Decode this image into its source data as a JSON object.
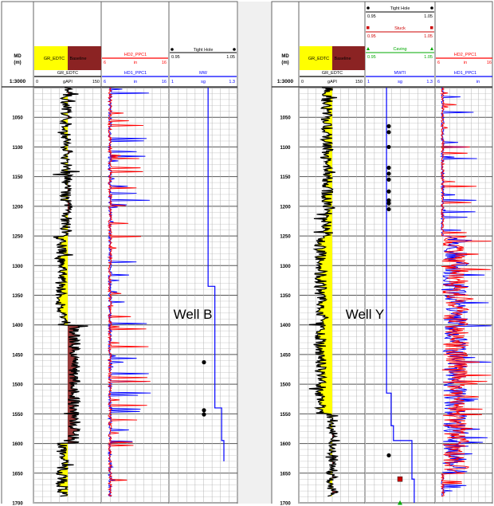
{
  "colors": {
    "gamma_black": "#000000",
    "fill_yellow": "#ffff00",
    "fill_brown": "#8b2323",
    "resist_red": "#ff0000",
    "resist_blue": "#0000ff",
    "mud_blue": "#0000ff",
    "caving_green": "#00aa00",
    "stuck_red": "#cc0000",
    "grid": "#808080"
  },
  "wells": [
    {
      "name": "Well B",
      "depth_header": {
        "line1": "MD",
        "line2": "(m)",
        "scale": "1:3000"
      },
      "gr_track": {
        "legend_yellow": "GR_EDTC",
        "legend_brown": "Baseline",
        "curve": "GR_EDTC",
        "min": "0",
        "unit": "gAPI",
        "max": "150"
      },
      "res_track": {
        "curve_top": "HD2_PPC1",
        "min_top": "6",
        "unit_top": "in",
        "max_top": "16",
        "curve_bot": "HD1_PPC1",
        "min_bot": "6",
        "unit_bot": "in",
        "max_bot": "16"
      },
      "mw_track": {
        "marker_label": "Tight Hole",
        "min": "0.95",
        "max": "1.05",
        "curve": "MW",
        "unit_min": "1",
        "unit": "sg",
        "unit_max": "1.3"
      },
      "depth_labels": [
        "1050",
        "1100",
        "1150",
        "1200",
        "1250",
        "1300",
        "1350",
        "1400",
        "1450",
        "1500",
        "1550",
        "1600",
        "1650",
        "1700"
      ],
      "mw_steps": [
        {
          "depth": 1000,
          "value": 1.17
        },
        {
          "depth": 1335,
          "value": 1.17
        },
        {
          "depth": 1335,
          "value": 1.2
        },
        {
          "depth": 1540,
          "value": 1.2
        },
        {
          "depth": 1540,
          "value": 1.23
        },
        {
          "depth": 1595,
          "value": 1.23
        },
        {
          "depth": 1595,
          "value": 1.24
        },
        {
          "depth": 1630,
          "value": 1.24
        }
      ],
      "tight_hole_depths": [
        1463,
        1544,
        1551
      ]
    },
    {
      "name": "Well Y",
      "depth_header": {
        "line1": "MD",
        "line2": "(m)",
        "scale": "1:3000"
      },
      "gr_track": {
        "legend_yellow": "GR_EDTC",
        "legend_brown": "Baseline",
        "curve": "GR_EDTC",
        "min": "0",
        "unit": "gAPI",
        "max": "150"
      },
      "event_track": {
        "tight": {
          "label": "Tight Hole",
          "min": "0.95",
          "max": "1.05"
        },
        "stuck": {
          "label": "Stuck",
          "min": "0.95",
          "max": "1.05"
        },
        "caving": {
          "label": "Caving",
          "min": "0.95",
          "max": "1.05"
        },
        "mw": {
          "curve": "MWTI",
          "min": "1",
          "unit": "sg",
          "max": "1.3"
        }
      },
      "res_track": {
        "curve_top": "HD2_PPC1",
        "min_top": "6",
        "unit_top": "in",
        "max_top": "16",
        "curve_bot": "HD1_PPC1",
        "min_bot": "6",
        "unit_bot": "in"
      },
      "depth_labels": [
        "1050",
        "1100",
        "1150",
        "1200",
        "1250",
        "1300",
        "1350",
        "1400",
        "1450",
        "1500",
        "1550",
        "1600",
        "1650",
        "1700"
      ],
      "mw_steps": [
        {
          "depth": 1000,
          "value": 1.09
        },
        {
          "depth": 1515,
          "value": 1.09
        },
        {
          "depth": 1515,
          "value": 1.11
        },
        {
          "depth": 1570,
          "value": 1.11
        },
        {
          "depth": 1570,
          "value": 1.12
        },
        {
          "depth": 1595,
          "value": 1.12
        },
        {
          "depth": 1595,
          "value": 1.2
        },
        {
          "depth": 1660,
          "value": 1.2
        },
        {
          "depth": 1660,
          "value": 1.21
        },
        {
          "depth": 1700,
          "value": 1.21
        }
      ],
      "tight_hole_depths": [
        1065,
        1075,
        1100,
        1135,
        1145,
        1155,
        1175,
        1190,
        1195,
        1205,
        1620
      ],
      "stuck_depths": [
        1660
      ],
      "caving_depths": [
        1700
      ]
    }
  ]
}
